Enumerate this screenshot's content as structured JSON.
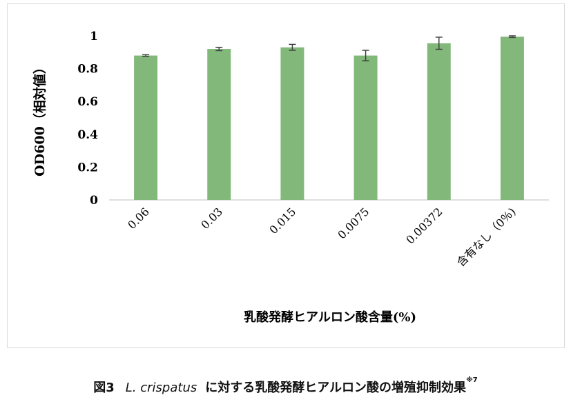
{
  "chart_data": {
    "type": "bar",
    "categories": [
      "0.06",
      "0.03",
      "0.015",
      "0.0075",
      "0.00372",
      "含有なし（0％)"
    ],
    "values": [
      0.88,
      0.92,
      0.93,
      0.88,
      0.955,
      0.995
    ],
    "errors": [
      0.005,
      0.01,
      0.018,
      0.032,
      0.037,
      0.005
    ],
    "xlabel": "乳酸発酵ヒアルロン酸含量(%)",
    "ylabel": "OD600（相対値）",
    "ylim": [
      0,
      1
    ],
    "yticks": [
      "0",
      "0.2",
      "0.4",
      "0.6",
      "0.8",
      "1"
    ],
    "grid": false,
    "bar_color": "#82b97a",
    "error_color": "#404040"
  },
  "caption": {
    "prefix": "図3",
    "species": "L. crispatus",
    "text": "に対する乳酸発酵ヒアルロン酸の増殖抑制効果",
    "note": "※7"
  }
}
